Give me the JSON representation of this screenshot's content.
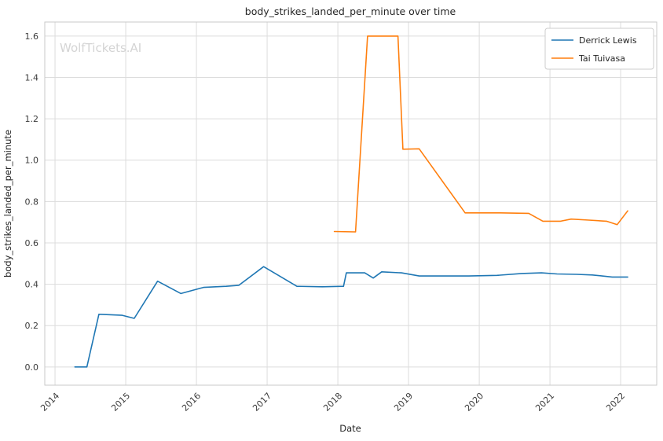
{
  "watermark": "WolfTickets.AI",
  "chart_data": {
    "type": "line",
    "title": "body_strikes_landed_per_minute over time",
    "xlabel": "Date",
    "ylabel": "body_strikes_landed_per_minute",
    "grid": true,
    "legend_position": "upper right",
    "xlim": [
      2013.855,
      2022.51
    ],
    "ylim": [
      -0.088,
      1.668
    ],
    "xticks": [
      {
        "value": 2014,
        "label": "2014"
      },
      {
        "value": 2015,
        "label": "2015"
      },
      {
        "value": 2016,
        "label": "2016"
      },
      {
        "value": 2017,
        "label": "2017"
      },
      {
        "value": 2018,
        "label": "2018"
      },
      {
        "value": 2019,
        "label": "2019"
      },
      {
        "value": 2020,
        "label": "2020"
      },
      {
        "value": 2021,
        "label": "2021"
      },
      {
        "value": 2022,
        "label": "2022"
      }
    ],
    "yticks": [
      {
        "value": 0.0,
        "label": "0.0"
      },
      {
        "value": 0.2,
        "label": "0.2"
      },
      {
        "value": 0.4,
        "label": "0.4"
      },
      {
        "value": 0.6,
        "label": "0.6"
      },
      {
        "value": 0.8,
        "label": "0.8"
      },
      {
        "value": 1.0,
        "label": "1.0"
      },
      {
        "value": 1.2,
        "label": "1.2"
      },
      {
        "value": 1.4,
        "label": "1.4"
      },
      {
        "value": 1.6,
        "label": "1.6"
      }
    ],
    "series": [
      {
        "name": "Derrick Lewis",
        "color": "#1f77b4",
        "x": [
          2014.28,
          2014.45,
          2014.62,
          2014.95,
          2015.12,
          2015.45,
          2015.78,
          2016.1,
          2016.42,
          2016.6,
          2016.95,
          2017.15,
          2017.42,
          2017.78,
          2018.08,
          2018.12,
          2018.38,
          2018.5,
          2018.62,
          2018.9,
          2019.15,
          2019.5,
          2019.85,
          2020.25,
          2020.6,
          2020.88,
          2021.1,
          2021.38,
          2021.6,
          2021.88,
          2022.1
        ],
        "y": [
          0.0,
          0.0,
          0.255,
          0.25,
          0.235,
          0.415,
          0.355,
          0.385,
          0.39,
          0.395,
          0.485,
          0.445,
          0.39,
          0.388,
          0.39,
          0.455,
          0.455,
          0.43,
          0.46,
          0.455,
          0.44,
          0.44,
          0.44,
          0.443,
          0.452,
          0.455,
          0.45,
          0.448,
          0.445,
          0.435,
          0.435
        ]
      },
      {
        "name": "Tai Tuivasa",
        "color": "#ff7f0e",
        "x": [
          2017.95,
          2018.25,
          2018.42,
          2018.85,
          2018.92,
          2019.15,
          2019.8,
          2020.3,
          2020.7,
          2020.9,
          2021.15,
          2021.3,
          2021.55,
          2021.8,
          2021.95,
          2022.1
        ],
        "y": [
          0.655,
          0.653,
          1.6,
          1.6,
          1.053,
          1.055,
          0.745,
          0.745,
          0.743,
          0.705,
          0.705,
          0.715,
          0.71,
          0.705,
          0.688,
          0.755
        ]
      }
    ]
  }
}
